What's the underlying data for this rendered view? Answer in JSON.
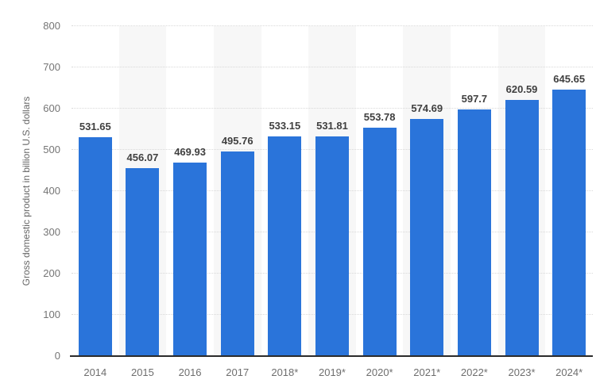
{
  "chart": {
    "y_axis_title": "Gross domestic product in billion U.S. dollars"
  },
  "chart_data": {
    "type": "bar",
    "categories": [
      "2014",
      "2015",
      "2016",
      "2017",
      "2018*",
      "2019*",
      "2020*",
      "2021*",
      "2022*",
      "2023*",
      "2024*"
    ],
    "values": [
      531.65,
      456.07,
      469.93,
      495.76,
      533.15,
      531.81,
      553.78,
      574.69,
      597.7,
      620.59,
      645.65
    ],
    "data_labels": [
      "531.65",
      "456.07",
      "469.93",
      "495.76",
      "533.15",
      "531.81",
      "553.78",
      "574.69",
      "597.7",
      "620.59",
      "645.65"
    ],
    "title": "",
    "xlabel": "",
    "ylabel": "Gross domestic product in billion U.S. dollars",
    "ylim": [
      0,
      800
    ],
    "yticks": [
      0,
      100,
      200,
      300,
      400,
      500,
      600,
      700,
      800
    ],
    "grid": true,
    "legend": false,
    "band_columns": [
      1,
      3,
      5,
      7,
      9
    ],
    "colors": {
      "bar": "#2a74da",
      "plot_band": "#f7f7f7",
      "gridline": "#d9d9d9",
      "axis_line": "#2b2b2b",
      "y_tick_label": "#757575",
      "x_tick_label": "#6e6e6e",
      "data_label": "#404040",
      "background": "#ffffff"
    }
  }
}
